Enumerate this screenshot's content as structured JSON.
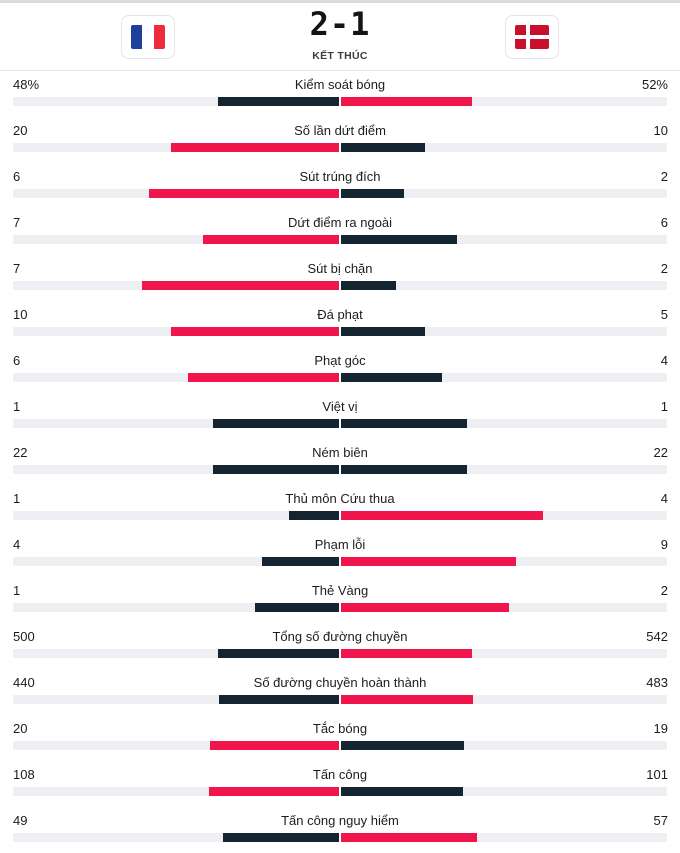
{
  "colors": {
    "leading": "#f0164b",
    "trailing": "#142430",
    "track": "#edeff2",
    "france_blue": "#1f3f9b",
    "france_white": "#ffffff",
    "france_red": "#ef2b3c",
    "denmark_red": "#c8102e",
    "denmark_white": "#ffffff"
  },
  "match": {
    "home_flag": "france-flag-icon",
    "away_flag": "denmark-flag-icon",
    "score": "2-1",
    "status": "KẾT THÚC"
  },
  "stats": [
    {
      "label": "Kiểm soát bóng",
      "home": "48%",
      "away": "52%",
      "home_val": 48,
      "away_val": 52
    },
    {
      "label": "Số lần dứt điểm",
      "home": "20",
      "away": "10",
      "home_val": 20,
      "away_val": 10
    },
    {
      "label": "Sút trúng đích",
      "home": "6",
      "away": "2",
      "home_val": 6,
      "away_val": 2
    },
    {
      "label": "Dứt điểm ra ngoài",
      "home": "7",
      "away": "6",
      "home_val": 7,
      "away_val": 6
    },
    {
      "label": "Sút bị chặn",
      "home": "7",
      "away": "2",
      "home_val": 7,
      "away_val": 2
    },
    {
      "label": "Đá phạt",
      "home": "10",
      "away": "5",
      "home_val": 10,
      "away_val": 5
    },
    {
      "label": "Phạt góc",
      "home": "6",
      "away": "4",
      "home_val": 6,
      "away_val": 4
    },
    {
      "label": "Việt vị",
      "home": "1",
      "away": "1",
      "home_val": 1,
      "away_val": 1
    },
    {
      "label": "Ném biên",
      "home": "22",
      "away": "22",
      "home_val": 22,
      "away_val": 22
    },
    {
      "label": "Thủ môn Cứu thua",
      "home": "1",
      "away": "4",
      "home_val": 1,
      "away_val": 4
    },
    {
      "label": "Phạm lỗi",
      "home": "4",
      "away": "9",
      "home_val": 4,
      "away_val": 9
    },
    {
      "label": "Thẻ Vàng",
      "home": "1",
      "away": "2",
      "home_val": 1,
      "away_val": 2
    },
    {
      "label": "Tổng số đường chuyền",
      "home": "500",
      "away": "542",
      "home_val": 500,
      "away_val": 542
    },
    {
      "label": "Số đường chuyền hoàn thành",
      "home": "440",
      "away": "483",
      "home_val": 440,
      "away_val": 483
    },
    {
      "label": "Tắc bóng",
      "home": "20",
      "away": "19",
      "home_val": 20,
      "away_val": 19
    },
    {
      "label": "Tấn công",
      "home": "108",
      "away": "101",
      "home_val": 108,
      "away_val": 101
    },
    {
      "label": "Tấn công nguy hiểm",
      "home": "49",
      "away": "57",
      "home_val": 49,
      "away_val": 57
    }
  ]
}
